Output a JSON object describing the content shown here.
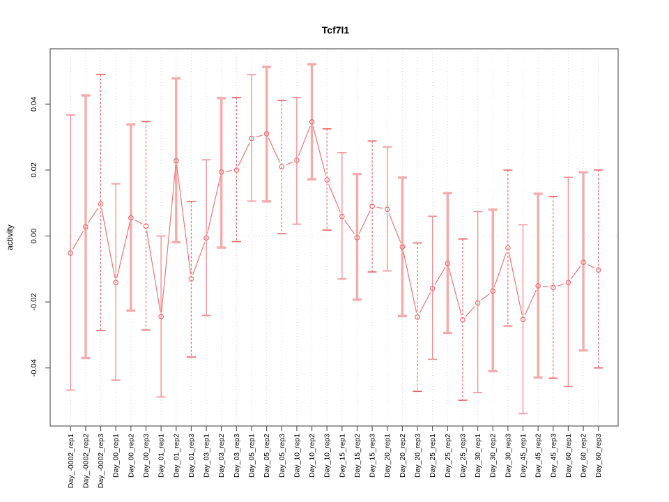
{
  "title": "Tcf7l1",
  "y_axis": {
    "label": "activity"
  },
  "chart_data": {
    "type": "scatter",
    "title": "Tcf7l1",
    "xlabel": "",
    "ylabel": "activity",
    "ylim": [
      -0.058,
      0.057
    ],
    "yticks": [
      -0.04,
      -0.02,
      0.0,
      0.02,
      0.04
    ],
    "ytick_labels": [
      "-0.04",
      "-0.02",
      "0.00",
      "0.02",
      "0.04"
    ],
    "grid": "vertical dotted gridlines at each category plus dotted horizontal line at y=0",
    "legend_position": "none",
    "marker": "open-circle",
    "categories": [
      "Day_-0002_rep1",
      "Day_-0002_rep2",
      "Day_-0002_rep3",
      "Day_00_rep1",
      "Day_00_rep2",
      "Day_00_rep3",
      "Day_01_rep1",
      "Day_01_rep2",
      "Day_01_rep3",
      "Day_03_rep1",
      "Day_03_rep2",
      "Day_03_rep3",
      "Day_05_rep1",
      "Day_05_rep2",
      "Day_05_rep3",
      "Day_10_rep1",
      "Day_10_rep2",
      "Day_10_rep3",
      "Day_15_rep1",
      "Day_15_rep2",
      "Day_15_rep3",
      "Day_20_rep1",
      "Day_20_rep2",
      "Day_20_rep3",
      "Day_25_rep1",
      "Day_25_rep2",
      "Day_25_rep3",
      "Day_30_rep1",
      "Day_30_rep2",
      "Day_30_rep3",
      "Day_45_rep1",
      "Day_45_rep2",
      "Day_45_rep3",
      "Day_60_rep1",
      "Day_60_rep2",
      "Day_60_rep3"
    ],
    "series": [
      {
        "name": "activity",
        "values": [
          -0.0052,
          0.0028,
          0.0097,
          -0.0141,
          0.0055,
          0.003,
          -0.0244,
          0.0228,
          -0.013,
          -0.0006,
          0.0194,
          0.02,
          0.0296,
          0.031,
          0.021,
          0.023,
          0.0346,
          0.017,
          0.0059,
          -0.0005,
          0.009,
          0.0081,
          -0.0033,
          -0.0246,
          -0.0159,
          -0.0083,
          -0.0254,
          -0.0203,
          -0.0167,
          -0.0036,
          -0.0253,
          -0.0151,
          -0.0156,
          -0.0141,
          -0.008,
          -0.0103
        ],
        "error_low": [
          -0.0467,
          -0.037,
          -0.0287,
          -0.0437,
          -0.0226,
          -0.0285,
          -0.0488,
          -0.0019,
          -0.0367,
          -0.0241,
          -0.0035,
          -0.0017,
          0.0106,
          0.0105,
          0.0007,
          0.0036,
          0.0172,
          0.0018,
          -0.013,
          -0.0193,
          -0.0109,
          -0.0106,
          -0.0243,
          -0.0471,
          -0.0374,
          -0.0294,
          -0.0498,
          -0.0475,
          -0.041,
          -0.0273,
          -0.0539,
          -0.0429,
          -0.0431,
          -0.0456,
          -0.0347,
          -0.04
        ],
        "error_high": [
          0.0367,
          0.0426,
          0.049,
          0.0158,
          0.0338,
          0.0347,
          0.0,
          0.0478,
          0.0105,
          0.0231,
          0.0418,
          0.042,
          0.0489,
          0.0513,
          0.0411,
          0.042,
          0.0521,
          0.0325,
          0.0253,
          0.0188,
          0.0288,
          0.027,
          0.0177,
          -0.0021,
          0.006,
          0.013,
          -0.0009,
          0.0074,
          0.008,
          0.02,
          0.0034,
          0.0128,
          0.012,
          0.0178,
          0.0193,
          0.02
        ]
      }
    ],
    "colors": {
      "point": "#ef6a6a",
      "line": "#f17575",
      "error_bar_solid": "#f49090",
      "error_bar_thick": "#f6abab",
      "error_bar_dashed": "#ee5e5e",
      "grid": "#d8d8d8",
      "zero_line": "#d8d8d8",
      "box": "#5a5a5a",
      "text": "#000000",
      "background": "#ffffff"
    }
  }
}
